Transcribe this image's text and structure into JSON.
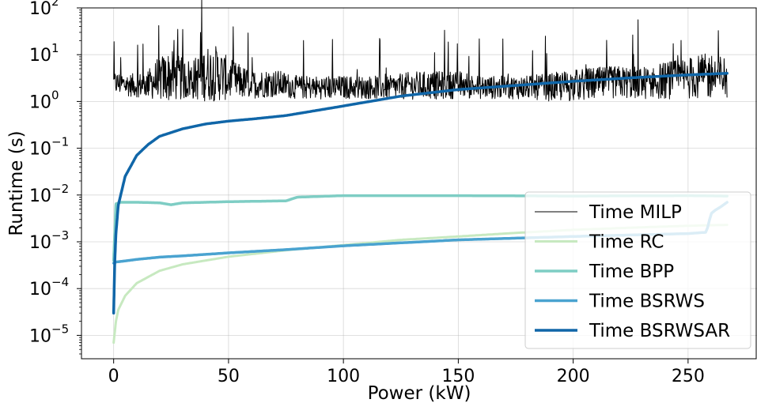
{
  "chart_data": {
    "type": "line",
    "xlabel": "Power (kW)",
    "ylabel": "Runtime (s)",
    "xlim": [
      -14,
      280
    ],
    "ylim_log10": [
      -5.5,
      2
    ],
    "yscale": "log",
    "grid": true,
    "legend_position": "lower-right",
    "x_ticks": [
      0,
      50,
      100,
      150,
      200,
      250
    ],
    "y_ticks": [
      {
        "exp": 2,
        "base": "10",
        "power": "2"
      },
      {
        "exp": 1,
        "base": "10",
        "power": "1"
      },
      {
        "exp": 0,
        "base": "10",
        "power": "0"
      },
      {
        "exp": -1,
        "base": "10",
        "power": "−1"
      },
      {
        "exp": -2,
        "base": "10",
        "power": "−2"
      },
      {
        "exp": -3,
        "base": "10",
        "power": "−3"
      },
      {
        "exp": -4,
        "base": "10",
        "power": "−4"
      },
      {
        "exp": -5,
        "base": "10",
        "power": "−5"
      }
    ],
    "series": [
      {
        "name": "Time MILP",
        "color": "#000000",
        "noisy": true,
        "x": [
          0,
          5,
          10,
          15,
          20,
          25,
          30,
          35,
          40,
          45,
          50,
          60,
          70,
          80,
          90,
          100,
          110,
          120,
          130,
          140,
          150,
          160,
          170,
          180,
          190,
          200,
          210,
          220,
          230,
          240,
          250,
          260,
          267
        ],
        "y": [
          2.5,
          2.3,
          2.2,
          2.4,
          3.0,
          3.5,
          3.0,
          3.0,
          4.0,
          4.0,
          3.0,
          2.3,
          2.5,
          2.0,
          2.0,
          2.0,
          2.0,
          2.0,
          2.2,
          2.2,
          2.3,
          2.0,
          2.0,
          2.0,
          2.0,
          2.2,
          2.4,
          2.6,
          2.5,
          2.8,
          3.2,
          3.5,
          3.3
        ],
        "spread": [
          0.25,
          0.25,
          0.25,
          0.3,
          0.5,
          0.55,
          0.45,
          0.45,
          0.6,
          0.6,
          0.45,
          0.3,
          0.3,
          0.25,
          0.25,
          0.25,
          0.25,
          0.25,
          0.3,
          0.3,
          0.3,
          0.25,
          0.25,
          0.25,
          0.3,
          0.35,
          0.35,
          0.35,
          0.35,
          0.4,
          0.45,
          0.5,
          0.45
        ]
      },
      {
        "name": "Time RC",
        "color": "#c7e9c0",
        "x": [
          0,
          1,
          2,
          5,
          10,
          20,
          30,
          50,
          75,
          100,
          125,
          150,
          175,
          200,
          225,
          250,
          267
        ],
        "y": [
          7e-06,
          2e-05,
          3.5e-05,
          7e-05,
          0.00013,
          0.00024,
          0.00033,
          0.00048,
          0.00066,
          0.00085,
          0.0011,
          0.0013,
          0.00155,
          0.0018,
          0.002,
          0.0022,
          0.0023
        ]
      },
      {
        "name": "Time BPP",
        "color": "#7ecdc4",
        "x": [
          0,
          1,
          3,
          10,
          20,
          25,
          30,
          50,
          75,
          80,
          100,
          150,
          200,
          250,
          267
        ],
        "y": [
          0.0004,
          0.0065,
          0.007,
          0.007,
          0.0068,
          0.0062,
          0.0068,
          0.0072,
          0.0075,
          0.009,
          0.0097,
          0.0097,
          0.0095,
          0.0097,
          0.0095
        ]
      },
      {
        "name": "Time BSRWS",
        "color": "#4aa3d0",
        "x": [
          0,
          1,
          5,
          10,
          20,
          30,
          50,
          75,
          100,
          150,
          200,
          250,
          258,
          260,
          262,
          264,
          267
        ],
        "y": [
          0.00035,
          0.00037,
          0.00039,
          0.00042,
          0.00047,
          0.0005,
          0.00058,
          0.00068,
          0.00082,
          0.0011,
          0.0013,
          0.0015,
          0.0016,
          0.004,
          0.0048,
          0.0055,
          0.007
        ]
      },
      {
        "name": "Time BSRWSAR",
        "color": "#1066a8",
        "x": [
          0,
          0.5,
          1,
          2,
          5,
          10,
          15,
          20,
          30,
          40,
          50,
          60,
          75,
          100,
          125,
          150,
          175,
          200,
          225,
          250,
          267
        ],
        "y": [
          3e-05,
          0.0004,
          0.0015,
          0.006,
          0.025,
          0.07,
          0.12,
          0.18,
          0.26,
          0.33,
          0.38,
          0.42,
          0.5,
          0.8,
          1.3,
          1.8,
          2.2,
          2.7,
          3.2,
          3.7,
          4.0
        ]
      }
    ]
  }
}
